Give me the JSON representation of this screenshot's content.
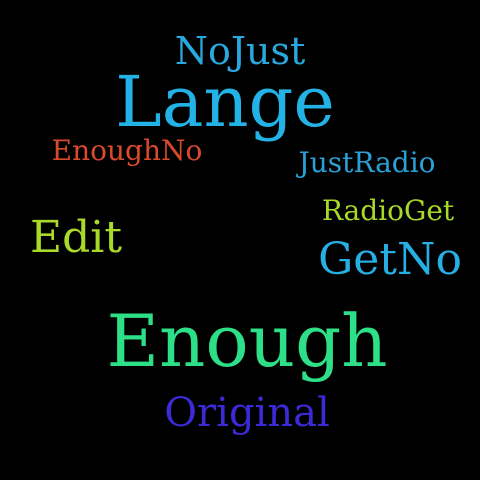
{
  "words": {
    "nojust": {
      "text": "NoJust",
      "color": "#2aa7dd"
    },
    "lange": {
      "text": "Lange",
      "color": "#23b2e6"
    },
    "enoughno": {
      "text": "EnoughNo",
      "color": "#d84a2b"
    },
    "justradio": {
      "text": "JustRadio",
      "color": "#2aa0d6"
    },
    "radioget": {
      "text": "RadioGet",
      "color": "#a8d82a"
    },
    "edit": {
      "text": "Edit",
      "color": "#a9d929"
    },
    "getno": {
      "text": "GetNo",
      "color": "#27aee3"
    },
    "enough": {
      "text": "Enough",
      "color": "#2ddf86"
    },
    "original": {
      "text": "Original",
      "color": "#3b2ad6"
    }
  }
}
